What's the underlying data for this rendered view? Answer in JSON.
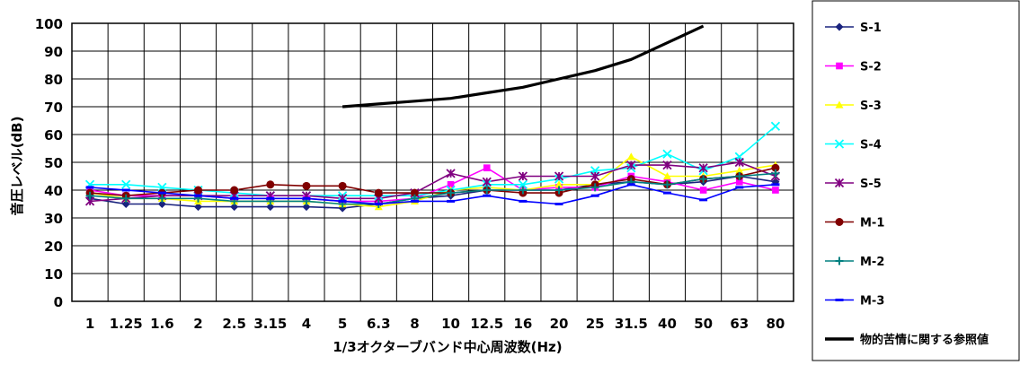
{
  "chart_data": {
    "type": "line",
    "xlabel": "1/3オクターブバンド中心周波数(Hz)",
    "ylabel": "音圧レベル(dB)",
    "ylim": [
      0,
      100
    ],
    "yticks": [
      0,
      10,
      20,
      30,
      40,
      50,
      60,
      70,
      80,
      90,
      100
    ],
    "grid": true,
    "legend_position": "right",
    "categories": [
      "1",
      "1.25",
      "1.6",
      "2",
      "2.5",
      "3.15",
      "4",
      "5",
      "6.3",
      "8",
      "10",
      "12.5",
      "16",
      "20",
      "25",
      "31.5",
      "40",
      "50",
      "63",
      "80"
    ],
    "series": [
      {
        "name": "S-1",
        "color": "#1a237e",
        "marker": "diamond",
        "values": [
          37,
          35,
          35,
          34,
          34,
          34,
          34,
          33.5,
          35,
          37,
          38,
          40,
          40,
          40,
          42,
          43,
          42,
          43,
          45,
          43
        ]
      },
      {
        "name": "S-2",
        "color": "#ff00ff",
        "marker": "square",
        "values": [
          40,
          38,
          38,
          38,
          37,
          37,
          37,
          36,
          36,
          37,
          42,
          48,
          40,
          41,
          41,
          45,
          43,
          40,
          43,
          40
        ]
      },
      {
        "name": "S-3",
        "color": "#ffff00",
        "marker": "triangle",
        "values": [
          39,
          37,
          37,
          36,
          36,
          36,
          36,
          35,
          34,
          36,
          40,
          41,
          40,
          42,
          42,
          52,
          45,
          45,
          47,
          49
        ]
      },
      {
        "name": "S-4",
        "color": "#00ffff",
        "marker": "x",
        "values": [
          42,
          42,
          41,
          40,
          39,
          38,
          38,
          38,
          38,
          38,
          40,
          42,
          42,
          44,
          47,
          48,
          53,
          47,
          52,
          63
        ]
      },
      {
        "name": "S-5",
        "color": "#800080",
        "marker": "star",
        "values": [
          36,
          37,
          38,
          38,
          38,
          38,
          38,
          37,
          37,
          39,
          46,
          43,
          45,
          45,
          45,
          49,
          49,
          48,
          50,
          45
        ]
      },
      {
        "name": "M-1",
        "color": "#800000",
        "marker": "circle",
        "values": [
          39,
          38,
          39,
          40,
          40,
          42,
          41.5,
          41.5,
          39,
          39,
          39,
          40,
          39,
          39,
          42,
          44,
          42,
          44,
          45,
          48
        ]
      },
      {
        "name": "M-2",
        "color": "#008080",
        "marker": "plus",
        "values": [
          38,
          37,
          37,
          37,
          36,
          36,
          36,
          35,
          35,
          37,
          39,
          40,
          40,
          40,
          41,
          43,
          42,
          44,
          45,
          46
        ]
      },
      {
        "name": "M-3",
        "color": "#0000ff",
        "marker": "dash",
        "values": [
          41,
          40,
          39,
          38,
          37,
          37,
          37,
          36,
          35,
          36,
          36,
          38,
          36,
          35,
          38,
          42,
          39,
          36.5,
          41,
          42
        ]
      },
      {
        "name": "物的苦情に関する参照値",
        "color": "#000000",
        "marker": "none",
        "values": [
          null,
          null,
          null,
          null,
          null,
          null,
          null,
          70,
          71,
          72,
          73,
          75,
          77,
          80,
          83,
          87,
          93,
          99,
          null,
          null
        ]
      }
    ]
  }
}
